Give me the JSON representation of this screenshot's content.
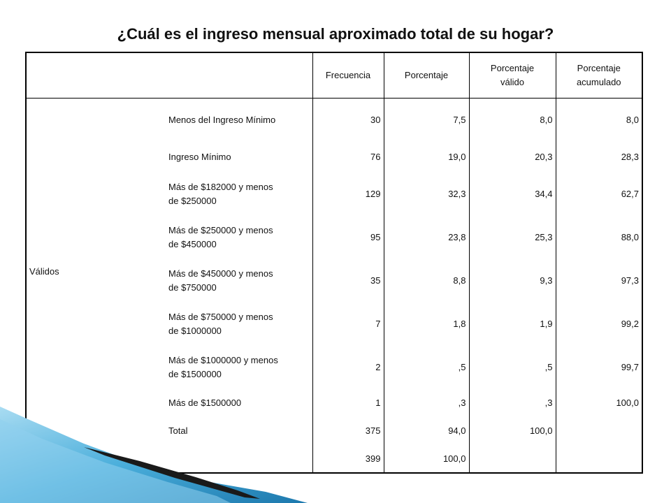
{
  "title": "¿Cuál es el ingreso mensual aproximado total de su hogar?",
  "columns": {
    "frecuencia": "Frecuencia",
    "porcentaje": "Porcentaje",
    "valido_1": "Porcentaje",
    "valido_2": "válido",
    "acumulado_1": "Porcentaje",
    "acumulado_2": "acumulado"
  },
  "groups": {
    "validos": "Válidos",
    "total": "Total"
  },
  "rows": [
    {
      "label": "Menos del Ingreso Mínimo",
      "label2": "",
      "frecuencia": "30",
      "porcentaje": "7,5",
      "valido": "8,0",
      "acumulado": "8,0"
    },
    {
      "label": "Ingreso Mínimo",
      "label2": "",
      "frecuencia": "76",
      "porcentaje": "19,0",
      "valido": "20,3",
      "acumulado": "28,3"
    },
    {
      "label": "Más de $182000 y menos",
      "label2": "de $250000",
      "frecuencia": "129",
      "porcentaje": "32,3",
      "valido": "34,4",
      "acumulado": "62,7"
    },
    {
      "label": "Más de $250000 y menos",
      "label2": "de $450000",
      "frecuencia": "95",
      "porcentaje": "23,8",
      "valido": "25,3",
      "acumulado": "88,0"
    },
    {
      "label": "Más de $450000 y menos",
      "label2": "de $750000",
      "frecuencia": "35",
      "porcentaje": "8,8",
      "valido": "9,3",
      "acumulado": "97,3"
    },
    {
      "label": "Más de $750000 y menos",
      "label2": "de $1000000",
      "frecuencia": "7",
      "porcentaje": "1,8",
      "valido": "1,9",
      "acumulado": "99,2"
    },
    {
      "label": "Más de $1000000 y menos",
      "label2": "de $1500000",
      "frecuencia": "2",
      "porcentaje": ",5",
      "valido": ",5",
      "acumulado": "99,7"
    },
    {
      "label": "Más de $1500000",
      "label2": "",
      "frecuencia": "1",
      "porcentaje": ",3",
      "valido": ",3",
      "acumulado": "100,0"
    }
  ],
  "subtotal": {
    "label": "Total",
    "frecuencia": "375",
    "porcentaje": "94,0",
    "valido": "100,0",
    "acumulado": ""
  },
  "total": {
    "frecuencia": "399",
    "porcentaje": "100,0"
  },
  "colors": {
    "accent_dark": "#222222",
    "accent_blue": "#2a8fc3",
    "accent_light": "#8fd0ee"
  }
}
